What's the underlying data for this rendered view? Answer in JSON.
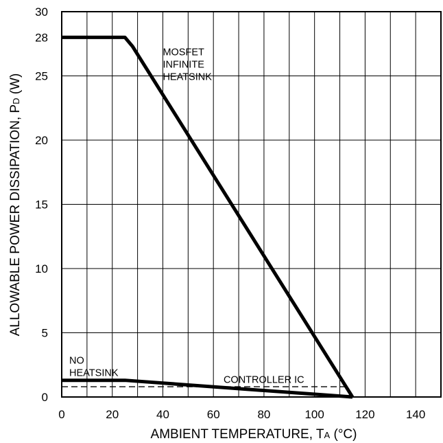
{
  "chart_data": {
    "type": "line",
    "title": "",
    "xlabel": {
      "main": "AMBIENT TEMPERATURE, T",
      "sub": "A",
      "unit": " (°C)"
    },
    "ylabel": {
      "main": "ALLOWABLE POWER DISSIPATION, P",
      "sub": "D",
      "unit": " (W)"
    },
    "xlim": [
      0,
      150
    ],
    "ylim": [
      0,
      30
    ],
    "xticks": [
      0,
      20,
      40,
      60,
      80,
      100,
      120,
      140
    ],
    "yticks": [
      0,
      5,
      10,
      15,
      20,
      25,
      30
    ],
    "extra_ytick": {
      "value": 28,
      "label": "28"
    },
    "grid": true,
    "series": [
      {
        "name": "MOSFET INFINITE HEATSINK",
        "style": "solid-thick",
        "x": [
          0,
          25,
          28,
          115
        ],
        "y": [
          28,
          28,
          27.3,
          0
        ]
      },
      {
        "name": "NO HEATSINK",
        "style": "solid-thick",
        "x": [
          0,
          25,
          115
        ],
        "y": [
          1.3,
          1.3,
          0
        ]
      },
      {
        "name": "CONTROLLER IC",
        "style": "dashed",
        "x": [
          0,
          113
        ],
        "y": [
          0.8,
          0.8
        ]
      }
    ],
    "annotations": [
      {
        "lines": [
          "MOSFET",
          "INFINITE",
          "HEATSINK"
        ],
        "x": 40,
        "y": 26.6
      },
      {
        "lines": [
          "NO",
          "HEATSINK"
        ],
        "x": 3,
        "y": 2.6
      },
      {
        "lines": [
          "CONTROLLER IC"
        ],
        "x": 64,
        "y": 1.1
      }
    ]
  },
  "colors": {
    "line": "#000000",
    "grid": "#000000",
    "background": "#ffffff"
  }
}
